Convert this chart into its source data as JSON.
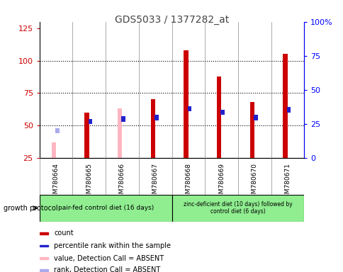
{
  "title": "GDS5033 / 1377282_at",
  "samples": [
    "GSM780664",
    "GSM780665",
    "GSM780666",
    "GSM780667",
    "GSM780668",
    "GSM780669",
    "GSM780670",
    "GSM780671"
  ],
  "red_bars": [
    0,
    60,
    0,
    70,
    108,
    88,
    68,
    105
  ],
  "pink_bars": [
    37,
    0,
    63,
    0,
    0,
    0,
    0,
    0
  ],
  "blue_bars": [
    0,
    55,
    57,
    58,
    65,
    62,
    58,
    64
  ],
  "lightblue_bars": [
    48,
    0,
    0,
    0,
    0,
    0,
    0,
    0
  ],
  "blue_on_pink": [
    0,
    0,
    1,
    0,
    0,
    0,
    0,
    0
  ],
  "group1_label": "pair-fed control diet (16 days)",
  "group2_label": "zinc-deficient diet (10 days) followed by\ncontrol diet (6 days)",
  "left_yticks": [
    25,
    50,
    75,
    100,
    125
  ],
  "right_ytick_vals": [
    0,
    25,
    50,
    75,
    100
  ],
  "right_yticklabels": [
    "0",
    "25",
    "50",
    "75",
    "100%"
  ],
  "ylim": [
    25,
    130
  ],
  "red_color": "#CC0000",
  "pink_color": "#FFB6C1",
  "blue_color": "#2222CC",
  "lightblue_color": "#AAAAEE",
  "group1_bg": "#C8C8C8",
  "group2_bg": "#90EE90",
  "protocol_label": "growth protocol",
  "legend_items": [
    {
      "color": "#CC0000",
      "label": "count"
    },
    {
      "color": "#2222CC",
      "label": "percentile rank within the sample"
    },
    {
      "color": "#FFB6C1",
      "label": "value, Detection Call = ABSENT"
    },
    {
      "color": "#AAAAEE",
      "label": "rank, Detection Call = ABSENT"
    }
  ]
}
